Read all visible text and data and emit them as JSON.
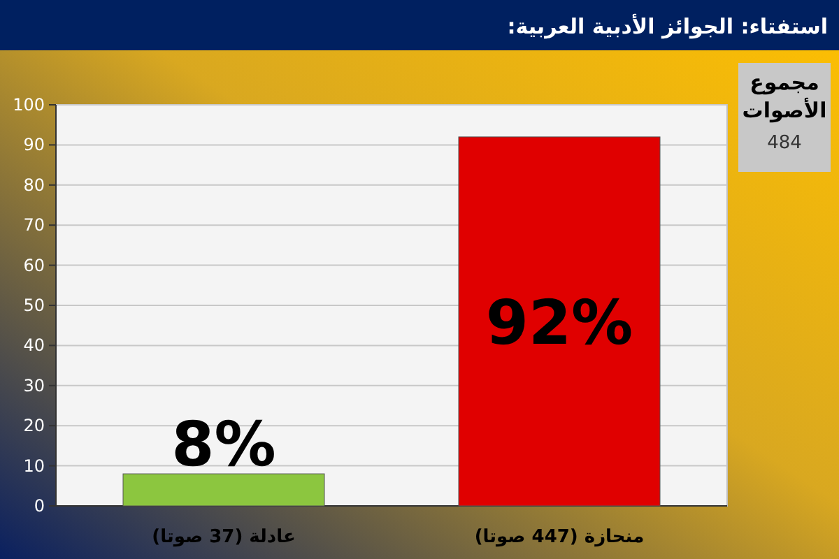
{
  "chart_data": {
    "type": "bar",
    "title": "استفتاء: الجوائز الأدبية العربية:",
    "categories": [
      "عادلة (37 صوتا)",
      "منحازة (447 صوتا)"
    ],
    "values": [
      8,
      92
    ],
    "colors": [
      "#8cc63f",
      "#e00000"
    ],
    "value_labels": [
      "8%",
      "92%"
    ],
    "ylim": [
      0,
      100
    ],
    "yticks": [
      0,
      10,
      20,
      30,
      40,
      50,
      60,
      70,
      80,
      90,
      100
    ],
    "grid": "y",
    "annotations": [
      "مجموع الأصوات",
      "484"
    ]
  }
}
